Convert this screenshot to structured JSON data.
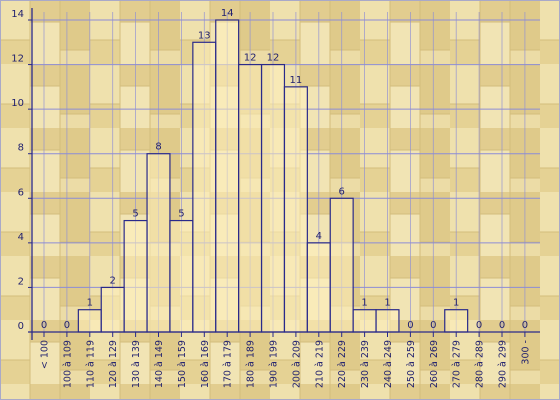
{
  "chart_data": {
    "type": "bar",
    "title": "",
    "xlabel": "",
    "ylabel": "",
    "ylim": [
      0,
      14
    ],
    "y_ticks": [
      0,
      2,
      4,
      6,
      8,
      10,
      12,
      14
    ],
    "grid": true,
    "legend": "none",
    "categories": [
      "< 100",
      "100 à 109",
      "110 à 119",
      "120 à 129",
      "130 à 139",
      "140 à 149",
      "150 à 159",
      "160 à 169",
      "170 à 179",
      "180 à 189",
      "190 à 199",
      "200 à 209",
      "210 à 219",
      "220 à 229",
      "230 à 239",
      "240 à 249",
      "250 à 259",
      "260 à 269",
      "270 à 279",
      "280 à 289",
      "290 à 299",
      "300 -"
    ],
    "values": [
      0,
      0,
      1,
      2,
      5,
      8,
      5,
      13,
      14,
      12,
      12,
      11,
      4,
      6,
      1,
      1,
      0,
      0,
      1,
      0,
      0,
      0
    ],
    "colors": {
      "background": "#e6d49a",
      "plank_light": "#efe1ad",
      "plank_dark": "#d9c483",
      "grid": "#8c8cd6",
      "axis": "#2a2a8a",
      "bar_fill": "#fff1bd",
      "text": "#1f1f6e",
      "frame": "#a9a9c8"
    }
  }
}
